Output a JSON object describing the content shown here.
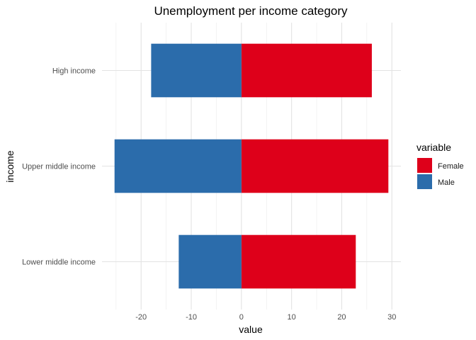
{
  "chart_data": {
    "type": "bar",
    "orientation": "horizontal",
    "stacked": "diverging",
    "title": "Unemployment per income category",
    "xlabel": "value",
    "ylabel": "income",
    "categories": [
      "High income",
      "Upper middle income",
      "Lower middle income"
    ],
    "series": [
      {
        "name": "Female",
        "color": "#de001a",
        "values": [
          26.0,
          29.3,
          22.8
        ]
      },
      {
        "name": "Male",
        "color": "#2b6cab",
        "values": [
          -18.0,
          -25.3,
          -12.5
        ]
      }
    ],
    "xlim": [
      -27.8,
      31.8
    ],
    "xticks": [
      -20,
      -10,
      0,
      10,
      20,
      30
    ],
    "xtick_labels": [
      "-20",
      "-10",
      "0",
      "10",
      "20",
      "30"
    ],
    "grid": true,
    "legend": {
      "title": "variable",
      "position": "right",
      "entries": [
        {
          "label": "Female",
          "color": "#de001a"
        },
        {
          "label": "Male",
          "color": "#2b6cab"
        }
      ]
    }
  }
}
